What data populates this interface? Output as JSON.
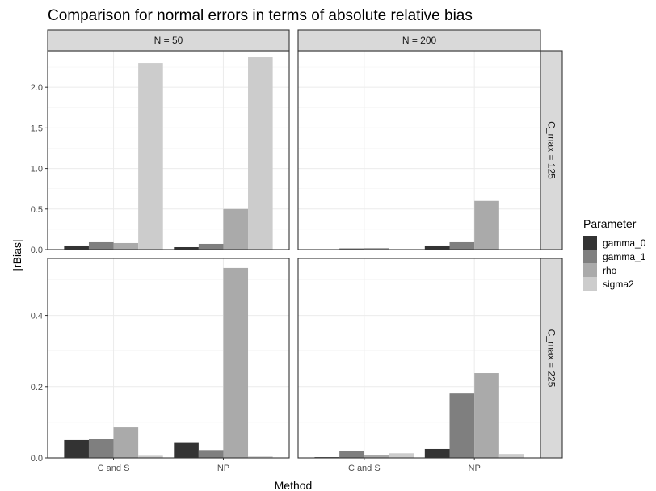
{
  "chart_data": {
    "type": "bar",
    "title": "Comparison for normal errors in terms of absolute relative bias",
    "xlabel": "Method",
    "ylabel": "|rBias|",
    "categories": [
      "C and S",
      "NP"
    ],
    "legend": {
      "title": "Parameter",
      "position": "right",
      "items": [
        {
          "name": "gamma_0",
          "color": "#333333"
        },
        {
          "name": "gamma_1",
          "color": "#7f7f7f"
        },
        {
          "name": "rho",
          "color": "#aaaaaa"
        },
        {
          "name": "sigma2",
          "color": "#cccccc"
        }
      ]
    },
    "col_facets": [
      "N = 50",
      "N = 200"
    ],
    "row_facets": [
      "C_max = 125",
      "C_max = 225"
    ],
    "grid": true,
    "panels": [
      {
        "col": 0,
        "row": 0,
        "ylim": [
          0,
          2.45
        ],
        "yticks": [
          0.0,
          0.5,
          1.0,
          1.5,
          2.0
        ],
        "ytick_labels": [
          "0.0",
          "0.5",
          "1.0",
          "1.5",
          "2.0"
        ],
        "series": [
          {
            "name": "gamma_0",
            "values": [
              0.05,
              0.03
            ]
          },
          {
            "name": "gamma_1",
            "values": [
              0.09,
              0.07
            ]
          },
          {
            "name": "rho",
            "values": [
              0.08,
              0.5
            ]
          },
          {
            "name": "sigma2",
            "values": [
              2.3,
              2.37
            ]
          }
        ]
      },
      {
        "col": 1,
        "row": 0,
        "ylim": [
          0,
          2.45
        ],
        "series": [
          {
            "name": "gamma_0",
            "values": [
              0.005,
              0.05
            ]
          },
          {
            "name": "gamma_1",
            "values": [
              0.015,
              0.09
            ]
          },
          {
            "name": "rho",
            "values": [
              0.02,
              0.6
            ]
          },
          {
            "name": "sigma2",
            "values": [
              0.005,
              0.005
            ]
          }
        ]
      },
      {
        "col": 0,
        "row": 1,
        "ylim": [
          0,
          0.56
        ],
        "yticks": [
          0.0,
          0.2,
          0.4
        ],
        "ytick_labels": [
          "0.0",
          "0.2",
          "0.4"
        ],
        "series": [
          {
            "name": "gamma_0",
            "values": [
              0.05,
              0.044
            ]
          },
          {
            "name": "gamma_1",
            "values": [
              0.054,
              0.022
            ]
          },
          {
            "name": "rho",
            "values": [
              0.086,
              0.533
            ]
          },
          {
            "name": "sigma2",
            "values": [
              0.006,
              0.004
            ]
          }
        ]
      },
      {
        "col": 1,
        "row": 1,
        "ylim": [
          0,
          0.56
        ],
        "series": [
          {
            "name": "gamma_0",
            "values": [
              0.002,
              0.025
            ]
          },
          {
            "name": "gamma_1",
            "values": [
              0.019,
              0.181
            ]
          },
          {
            "name": "rho",
            "values": [
              0.009,
              0.238
            ]
          },
          {
            "name": "sigma2",
            "values": [
              0.013,
              0.011
            ]
          }
        ]
      }
    ]
  }
}
